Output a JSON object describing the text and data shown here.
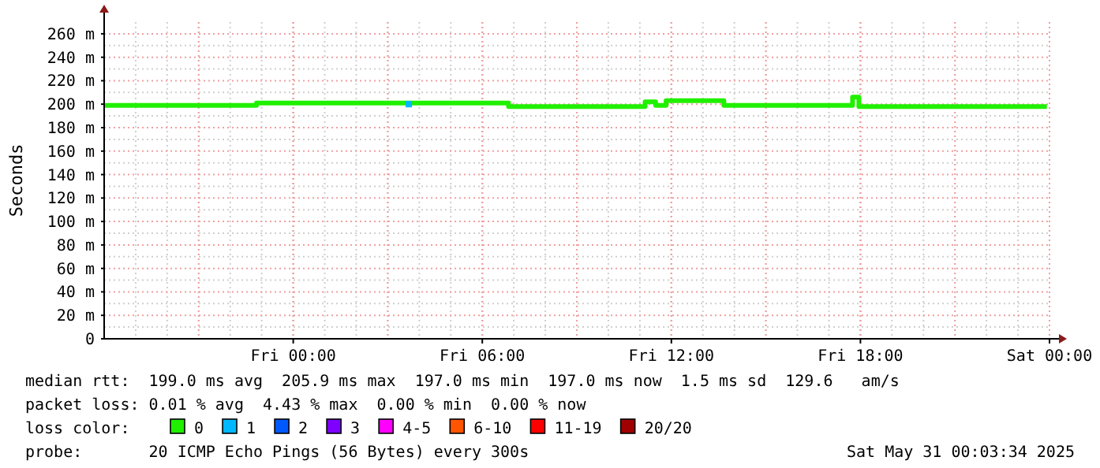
{
  "chart_data": {
    "type": "step",
    "ylabel": "Seconds",
    "xlim": [
      "2025-05-29T18:00",
      "2025-05-31T00:00"
    ],
    "xticks": [
      {
        "value": "2025-05-30T00:00",
        "label": "Fri 00:00"
      },
      {
        "value": "2025-05-30T06:00",
        "label": "Fri 06:00"
      },
      {
        "value": "2025-05-30T12:00",
        "label": "Fri 12:00"
      },
      {
        "value": "2025-05-30T18:00",
        "label": "Fri 18:00"
      },
      {
        "value": "2025-05-31T00:00",
        "label": "Sat 00:00"
      }
    ],
    "ylim": [
      0,
      270
    ],
    "yticks": [
      0,
      {
        "value": 20,
        "label": "20 m"
      },
      {
        "value": 40,
        "label": "40 m"
      },
      {
        "value": 60,
        "label": "60 m"
      },
      {
        "value": 80,
        "label": "80 m"
      },
      {
        "value": 100,
        "label": "100 m"
      },
      {
        "value": 120,
        "label": "120 m"
      },
      {
        "value": 140,
        "label": "140 m"
      },
      {
        "value": 160,
        "label": "160 m"
      },
      {
        "value": 180,
        "label": "180 m"
      },
      {
        "value": 200,
        "label": "200 m"
      },
      {
        "value": 220,
        "label": "220 m"
      },
      {
        "value": 240,
        "label": "240 m"
      },
      {
        "value": 260,
        "label": "260 m"
      }
    ],
    "grid": true,
    "legend": "bottom",
    "legend_title": "loss color:",
    "marker": "none",
    "line_style": "solid",
    "series": [
      {
        "name": "0",
        "color": "#20f000",
        "x": [
          "2025-05-29T18:00",
          "2025-05-29T22:50",
          "2025-05-30T06:50",
          "2025-05-30T11:10",
          "2025-05-30T11:30",
          "2025-05-30T11:50",
          "2025-05-30T13:40",
          "2025-05-30T15:40",
          "2025-05-30T17:45",
          "2025-05-30T17:57",
          "2025-05-30T23:55"
        ],
        "values": [
          199,
          201,
          198,
          202,
          199,
          203,
          199,
          199,
          206,
          198,
          198
        ]
      },
      {
        "name": "1",
        "color": "#00b8ff",
        "type": "scatter",
        "marker": "square",
        "x": [
          "2025-05-30T03:40"
        ],
        "values": [
          200
        ]
      },
      {
        "name": "2",
        "color": "#0059ff",
        "type": "scatter"
      },
      {
        "name": "3",
        "color": "#7e00ff",
        "type": "scatter"
      },
      {
        "name": "4-5",
        "color": "#ff00ff",
        "type": "scatter"
      },
      {
        "name": "6-10",
        "color": "#ff5500",
        "type": "scatter"
      },
      {
        "name": "11-19",
        "color": "#ff0000",
        "type": "scatter"
      },
      {
        "name": "20/20",
        "color": "#a10000",
        "type": "scatter"
      }
    ],
    "annotations": [
      "median rtt:  199.0 ms avg  205.9 ms max  197.0 ms min  197.0 ms now  1.5 ms sd  129.6   am/s",
      "packet loss: 0.01 % avg  4.43 % max  0.00 % min  0.00 % now",
      "probe:       20 ICMP Echo Pings (56 Bytes) every 300s",
      "Sat May 31 00:03:34 2025"
    ]
  }
}
